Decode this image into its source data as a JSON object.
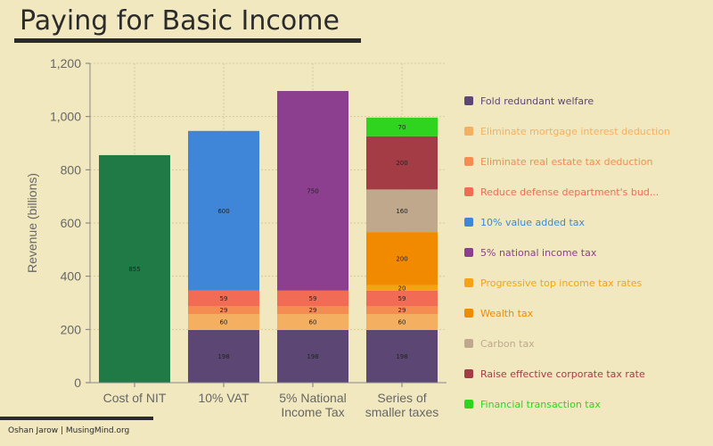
{
  "header": {
    "title": "Paying for Basic Income"
  },
  "footer": {
    "credit": "Oshan Jarow | MusingMind.org"
  },
  "chart_data": {
    "type": "bar",
    "stacked": true,
    "ylabel": "Revenue (billions)",
    "xlabel": "",
    "ylim": [
      0,
      1200
    ],
    "yticks": [
      "0",
      "200",
      "400",
      "600",
      "800",
      "1,000",
      "1,200"
    ],
    "grid": true,
    "legend_position": "right",
    "categories": [
      [
        "Cost of NIT"
      ],
      [
        "10% VAT"
      ],
      [
        "5% National",
        "Income Tax"
      ],
      [
        "Series of",
        "smaller taxes"
      ]
    ],
    "series": [
      {
        "name": "Cost of NIT",
        "color": "#1f7a45",
        "legend": false,
        "values": [
          855,
          0,
          0,
          0
        ],
        "labels": [
          "855",
          "",
          "",
          ""
        ]
      },
      {
        "name": "Fold redundant welfare",
        "color": "#5b4674",
        "legend": true,
        "values": [
          0,
          198,
          198,
          198
        ],
        "labels": [
          "",
          "198",
          "198",
          "198"
        ]
      },
      {
        "name": "Eliminate mortgage interest deduction",
        "color": "#f4b060",
        "legend": true,
        "values": [
          0,
          60,
          60,
          60
        ],
        "labels": [
          "",
          "60",
          "60",
          "60"
        ]
      },
      {
        "name": "Eliminate real estate tax deduction",
        "color": "#f58d52",
        "legend": true,
        "values": [
          0,
          29,
          29,
          29
        ],
        "labels": [
          "",
          "29",
          "29",
          "29"
        ]
      },
      {
        "name": "Reduce defense department's bud...",
        "color": "#f26b55",
        "legend": true,
        "values": [
          0,
          59,
          59,
          59
        ],
        "labels": [
          "",
          "59",
          "59",
          "59"
        ]
      },
      {
        "name": "10% value added tax",
        "color": "#3f86d8",
        "legend": true,
        "values": [
          0,
          600,
          0,
          0
        ],
        "labels": [
          "",
          "600",
          "",
          ""
        ]
      },
      {
        "name": "5% national income tax",
        "color": "#8c3e8f",
        "legend": true,
        "values": [
          0,
          0,
          750,
          0
        ],
        "labels": [
          "",
          "",
          "750",
          ""
        ]
      },
      {
        "name": "Progressive top income tax rates",
        "color": "#f5a314",
        "legend": true,
        "values": [
          0,
          0,
          0,
          20
        ],
        "labels": [
          "",
          "",
          "",
          "20"
        ]
      },
      {
        "name": "Wealth tax",
        "color": "#f28a00",
        "legend": true,
        "values": [
          0,
          0,
          0,
          200
        ],
        "labels": [
          "",
          "",
          "",
          "200"
        ]
      },
      {
        "name": "Carbon tax",
        "color": "#bfa88c",
        "legend": true,
        "values": [
          0,
          0,
          0,
          160
        ],
        "labels": [
          "",
          "",
          "",
          "160"
        ]
      },
      {
        "name": "Raise effective corporate tax rate",
        "color": "#a43c46",
        "legend": true,
        "values": [
          0,
          0,
          0,
          200
        ],
        "labels": [
          "",
          "",
          "",
          "200"
        ]
      },
      {
        "name": "Financial transaction tax",
        "color": "#2ed41e",
        "legend": true,
        "values": [
          0,
          0,
          0,
          70
        ],
        "labels": [
          "",
          "",
          "",
          "70"
        ]
      }
    ]
  }
}
